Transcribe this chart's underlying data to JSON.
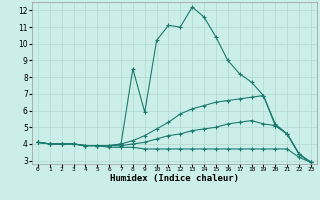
{
  "xlabel": "Humidex (Indice chaleur)",
  "xlim": [
    -0.5,
    23.5
  ],
  "ylim": [
    2.8,
    12.5
  ],
  "yticks": [
    3,
    4,
    5,
    6,
    7,
    8,
    9,
    10,
    11,
    12
  ],
  "xticks": [
    0,
    1,
    2,
    3,
    4,
    5,
    6,
    7,
    8,
    9,
    10,
    11,
    12,
    13,
    14,
    15,
    16,
    17,
    18,
    19,
    20,
    21,
    22,
    23
  ],
  "bg_color": "#cceee8",
  "grid_color": "#b0d8d2",
  "line_color": "#1a7a6e",
  "lines": [
    {
      "x": [
        0,
        1,
        2,
        3,
        4,
        5,
        6,
        7,
        8,
        9,
        10,
        11,
        12,
        13,
        14,
        15,
        16,
        17,
        18,
        19,
        20,
        21,
        22,
        23
      ],
      "y": [
        4.1,
        4.0,
        4.0,
        4.0,
        3.9,
        3.9,
        3.8,
        3.8,
        3.8,
        3.7,
        3.7,
        3.7,
        3.7,
        3.7,
        3.7,
        3.7,
        3.7,
        3.7,
        3.7,
        3.7,
        3.7,
        3.7,
        3.2,
        2.9
      ]
    },
    {
      "x": [
        0,
        1,
        2,
        3,
        4,
        5,
        6,
        7,
        8,
        9,
        10,
        11,
        12,
        13,
        14,
        15,
        16,
        17,
        18,
        19,
        20,
        21,
        22,
        23
      ],
      "y": [
        4.1,
        4.0,
        4.0,
        4.0,
        3.9,
        3.9,
        3.9,
        3.9,
        4.0,
        4.1,
        4.3,
        4.5,
        4.6,
        4.8,
        4.9,
        5.0,
        5.2,
        5.3,
        5.4,
        5.2,
        5.1,
        4.6,
        3.4,
        2.9
      ]
    },
    {
      "x": [
        0,
        1,
        2,
        3,
        4,
        5,
        6,
        7,
        8,
        9,
        10,
        11,
        12,
        13,
        14,
        15,
        16,
        17,
        18,
        19,
        20,
        21,
        22,
        23
      ],
      "y": [
        4.1,
        4.0,
        4.0,
        4.0,
        3.9,
        3.9,
        3.9,
        4.0,
        4.2,
        4.5,
        4.9,
        5.3,
        5.8,
        6.1,
        6.3,
        6.5,
        6.6,
        6.7,
        6.8,
        6.9,
        5.1,
        4.6,
        3.4,
        2.9
      ]
    },
    {
      "x": [
        0,
        1,
        2,
        3,
        4,
        5,
        6,
        7,
        8,
        9,
        10,
        11,
        12,
        13,
        14,
        15,
        16,
        17,
        18,
        19,
        20,
        21,
        22,
        23
      ],
      "y": [
        4.1,
        4.0,
        4.0,
        4.0,
        3.9,
        3.9,
        3.9,
        4.0,
        8.5,
        5.9,
        10.2,
        11.1,
        11.0,
        12.2,
        11.6,
        10.4,
        9.0,
        8.2,
        7.7,
        6.9,
        5.2,
        4.6,
        3.4,
        2.9
      ]
    }
  ]
}
